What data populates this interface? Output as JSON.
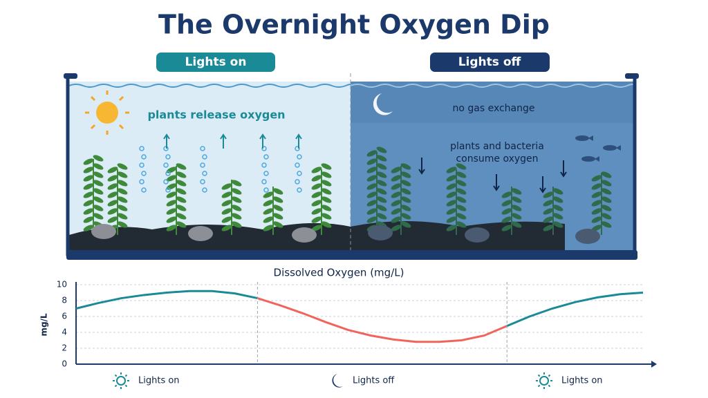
{
  "title": "The Overnight Oxygen Dip",
  "panels": [
    {
      "label": "Lights on",
      "captions": [
        "plants release oxygen"
      ]
    },
    {
      "label": "Lights off",
      "captions": [
        "no gas exchange",
        "plants and bacteria",
        "consume oxygen"
      ]
    }
  ],
  "chart_data": {
    "type": "line",
    "title": "Dissolved Oxygen (mg/L)",
    "y_label": "mg/L",
    "ylim": [
      0,
      10
    ],
    "yticks": [
      0,
      2,
      4,
      6,
      8,
      10
    ],
    "grid": true,
    "series": [
      {
        "name": "Lights on",
        "color": "#1a8a96",
        "values": [
          7.0,
          7.7,
          8.3,
          8.7,
          9.0,
          9.2,
          9.2,
          8.9,
          8.3,
          null,
          null,
          null,
          null,
          null,
          null,
          null,
          null,
          null,
          null,
          null,
          null,
          null,
          null,
          null,
          null,
          null
        ]
      },
      {
        "name": "Lights off",
        "color": "#f0645c",
        "values": [
          null,
          null,
          null,
          null,
          null,
          null,
          null,
          null,
          8.3,
          7.4,
          6.4,
          5.3,
          4.3,
          3.6,
          3.1,
          2.8,
          2.8,
          3.0,
          3.6,
          4.8,
          null,
          null,
          null,
          null,
          null,
          null
        ]
      },
      {
        "name": "Lights on",
        "color": "#1a8a96",
        "values": [
          null,
          null,
          null,
          null,
          null,
          null,
          null,
          null,
          null,
          null,
          null,
          null,
          null,
          null,
          null,
          null,
          null,
          null,
          null,
          4.8,
          6.0,
          7.0,
          7.8,
          8.4,
          8.8,
          9.0
        ]
      }
    ]
  }
}
